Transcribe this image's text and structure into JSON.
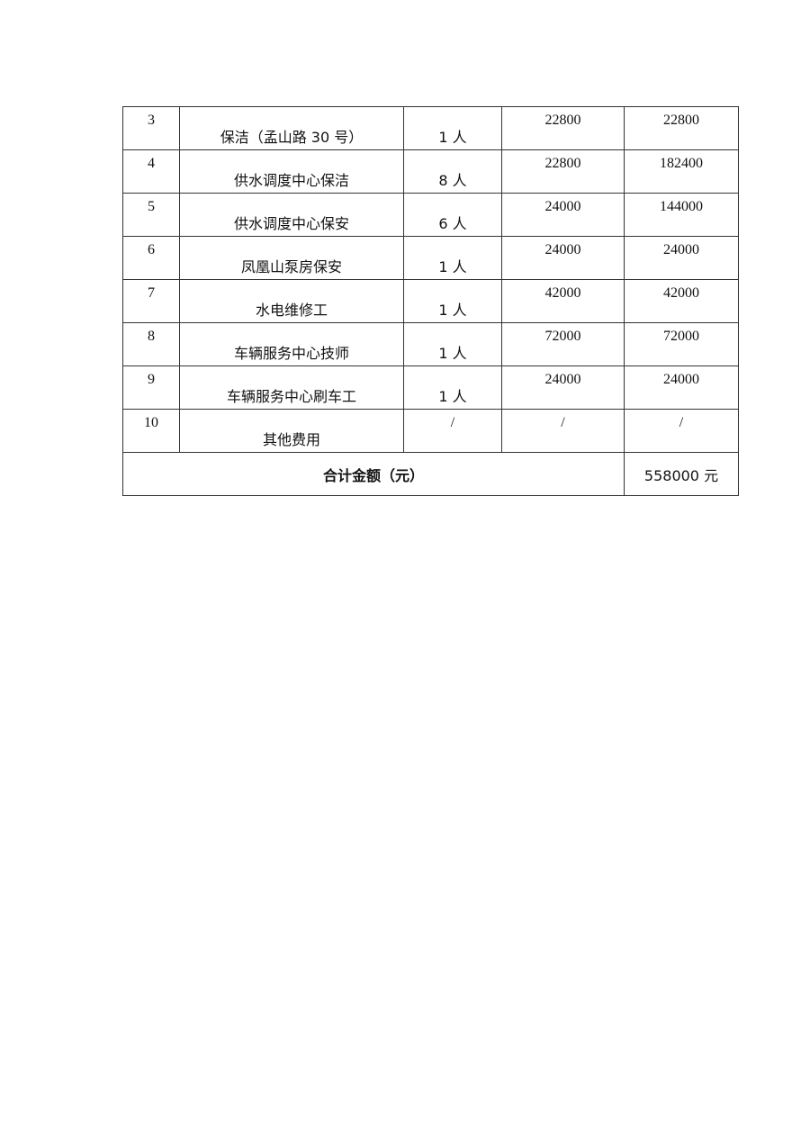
{
  "rows": [
    {
      "no": "3",
      "item": "保洁（孟山路 30 号）",
      "count": "1 人",
      "unit_price": "22800",
      "amount": "22800"
    },
    {
      "no": "4",
      "item": "供水调度中心保洁",
      "count": "8 人",
      "unit_price": "22800",
      "amount": "182400"
    },
    {
      "no": "5",
      "item": "供水调度中心保安",
      "count": "6 人",
      "unit_price": "24000",
      "amount": "144000"
    },
    {
      "no": "6",
      "item": "凤凰山泵房保安",
      "count": "1 人",
      "unit_price": "24000",
      "amount": "24000"
    },
    {
      "no": "7",
      "item": "水电维修工",
      "count": "1 人",
      "unit_price": "42000",
      "amount": "42000"
    },
    {
      "no": "8",
      "item": "车辆服务中心技师",
      "count": "1 人",
      "unit_price": "72000",
      "amount": "72000"
    },
    {
      "no": "9",
      "item": "车辆服务中心刷车工",
      "count": "1 人",
      "unit_price": "24000",
      "amount": "24000"
    },
    {
      "no": "10",
      "item": "其他费用",
      "count": "/",
      "unit_price": "/",
      "amount": "/"
    }
  ],
  "total": {
    "label": "合计金额（元）",
    "value": "558000 元"
  }
}
